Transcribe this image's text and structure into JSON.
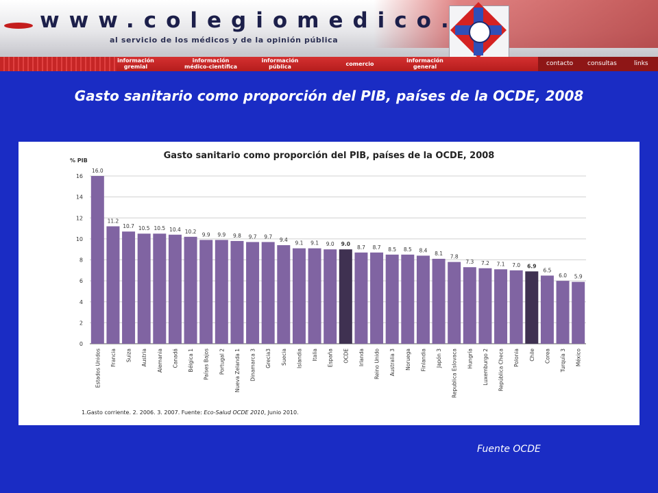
{
  "header": {
    "url_text": "www.colegiomedico.cl",
    "tagline": "al servicio de los médicos y de la opinión pública",
    "nav_items": [
      {
        "line1": "información",
        "line2": "gremial"
      },
      {
        "line1": "información",
        "line2": "médico-científica"
      },
      {
        "line1": "información",
        "line2": "pública"
      },
      {
        "line1": "comercio",
        "line2": ""
      },
      {
        "line1": "información",
        "line2": "general"
      }
    ],
    "nav_right": [
      "contacto",
      "consultas",
      "links"
    ]
  },
  "slide": {
    "title": "Gasto sanitario como proporción del PIB, países de la OCDE, 2008",
    "source": "Fuente OCDE"
  },
  "colors": {
    "background": "#1a2cc4",
    "bar": "#8064a2",
    "bar_highlight": "#3f3151",
    "nav_red": "#c62626"
  },
  "chart_data": {
    "type": "bar",
    "title": "Gasto sanitario como proporción del PIB, países de la OCDE, 2008",
    "ylabel": "% PIB",
    "ylim": [
      0,
      16
    ],
    "yticks": [
      0,
      2,
      4,
      6,
      8,
      10,
      12,
      14,
      16
    ],
    "grid": true,
    "categories": [
      "Estados Unidos",
      "Francia",
      "Suiza",
      "Austria",
      "Alemania",
      "Canadá",
      "Bélgica 1",
      "Países Bajos",
      "Portugal 2",
      "Nueva Zelanda 1",
      "Dinamarca 3",
      "Grecia3",
      "Suecia",
      "Islandia",
      "Italia",
      "España",
      "OCDE",
      "Irlanda",
      "Reino Unido",
      "Australia 3",
      "Noruega",
      "Finlandia",
      "Japón 3",
      "Republica Eslovaca",
      "Hungría",
      "Luxemburgo 2",
      "República Checa",
      "Polonia",
      "Chile",
      "Corea",
      "Turquía 3",
      "México"
    ],
    "values": [
      16.0,
      11.2,
      10.7,
      10.5,
      10.5,
      10.4,
      10.2,
      9.9,
      9.9,
      9.8,
      9.7,
      9.7,
      9.4,
      9.1,
      9.1,
      9.0,
      9.0,
      8.7,
      8.7,
      8.5,
      8.5,
      8.4,
      8.1,
      7.8,
      7.3,
      7.2,
      7.1,
      7.0,
      6.9,
      6.5,
      6.0,
      5.9
    ],
    "labels": [
      "16.0",
      "11.2",
      "10.7",
      "10.5",
      "10.5",
      "10.4",
      "10.2",
      "9.9",
      "9.9",
      "9.8",
      "9.7",
      "9.7",
      "9.4",
      "9.1",
      "9.1",
      "9.0",
      "9.0",
      "8.7",
      "8.7",
      "8.5",
      "8.5",
      "8.4",
      "8.1",
      "7.8",
      "7.3",
      "7.2",
      "7.1",
      "7.0",
      "6.9",
      "6.5",
      "6.0",
      "5.9"
    ],
    "highlighted": [
      "OCDE",
      "Chile"
    ],
    "footnote_plain": "1.Gasto corriente.  2. 2006.  3. 2007.  Fuente: ",
    "footnote_italic": "Eco-Salud OCDE 2010",
    "footnote_end": ", Junio 2010."
  }
}
